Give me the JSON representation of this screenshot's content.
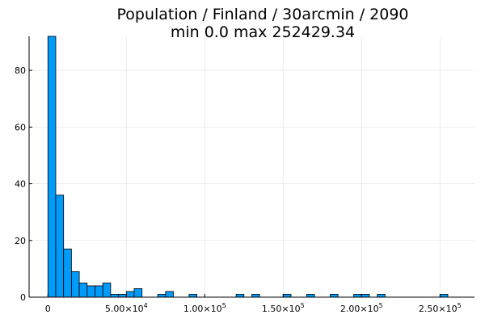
{
  "chart_data": {
    "type": "bar",
    "title": "Population / Finland / 30arcmin / 2090",
    "subtitle": "min 0.0  max 252429.34",
    "xlabel": "",
    "ylabel": "",
    "bin_width": 5000,
    "bin_starts": [
      0,
      5000,
      10000,
      15000,
      20000,
      25000,
      30000,
      35000,
      40000,
      45000,
      50000,
      55000,
      60000,
      65000,
      70000,
      75000,
      80000,
      85000,
      90000,
      95000,
      100000,
      105000,
      110000,
      115000,
      120000,
      125000,
      130000,
      135000,
      140000,
      145000,
      150000,
      155000,
      160000,
      165000,
      170000,
      175000,
      180000,
      185000,
      190000,
      195000,
      200000,
      205000,
      210000,
      215000,
      220000,
      225000,
      230000,
      235000,
      240000,
      245000,
      250000
    ],
    "values": [
      92,
      36,
      17,
      9,
      5,
      4,
      4,
      5,
      1,
      1,
      2,
      3,
      0,
      0,
      1,
      2,
      0,
      0,
      1,
      0,
      0,
      0,
      0,
      0,
      1,
      0,
      1,
      0,
      0,
      0,
      1,
      0,
      0,
      1,
      0,
      0,
      1,
      0,
      0,
      1,
      1,
      0,
      1,
      0,
      0,
      0,
      0,
      0,
      0,
      0,
      1
    ],
    "xlim": [
      -12000,
      272000
    ],
    "ylim": [
      0,
      92
    ],
    "x_ticks": [
      {
        "value": 0,
        "mantissa": "0",
        "exponent": ""
      },
      {
        "value": 50000,
        "mantissa": "5.00×10",
        "exponent": "4"
      },
      {
        "value": 100000,
        "mantissa": "1.00×10",
        "exponent": "5"
      },
      {
        "value": 150000,
        "mantissa": "1.50×10",
        "exponent": "5"
      },
      {
        "value": 200000,
        "mantissa": "2.00×10",
        "exponent": "5"
      },
      {
        "value": 250000,
        "mantissa": "2.50×10",
        "exponent": "5"
      }
    ],
    "y_ticks": [
      0,
      20,
      40,
      60,
      80
    ],
    "grid": true,
    "legend": "none",
    "bar_color": "#009af9"
  }
}
